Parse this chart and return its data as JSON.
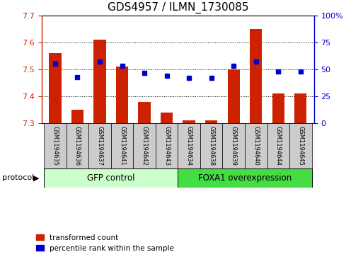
{
  "title": "GDS4957 / ILMN_1730085",
  "samples": [
    "GSM1194635",
    "GSM1194636",
    "GSM1194637",
    "GSM1194641",
    "GSM1194642",
    "GSM1194643",
    "GSM1194634",
    "GSM1194638",
    "GSM1194639",
    "GSM1194640",
    "GSM1194644",
    "GSM1194645"
  ],
  "red_values": [
    7.56,
    7.35,
    7.61,
    7.51,
    7.38,
    7.34,
    7.31,
    7.31,
    7.5,
    7.65,
    7.41,
    7.41
  ],
  "blue_values": [
    55,
    43,
    57,
    53,
    47,
    44,
    42,
    42,
    53,
    57,
    48,
    48
  ],
  "gfp_label": "GFP control",
  "foxa1_label": "FOXA1 overexpression",
  "protocol_label": "protocol",
  "legend_red": "transformed count",
  "legend_blue": "percentile rank within the sample",
  "ylim_left": [
    7.3,
    7.7
  ],
  "ylim_right": [
    0,
    100
  ],
  "yticks_left": [
    7.3,
    7.4,
    7.5,
    7.6,
    7.7
  ],
  "yticks_right": [
    0,
    25,
    50,
    75,
    100
  ],
  "red_color": "#CC2200",
  "blue_color": "#0000CC",
  "bar_width": 0.55,
  "gfp_bg": "#ccffcc",
  "foxa1_bg": "#44dd44",
  "sample_bg": "#cccccc",
  "title_fontsize": 11,
  "tick_fontsize": 8,
  "label_fontsize": 8.5
}
